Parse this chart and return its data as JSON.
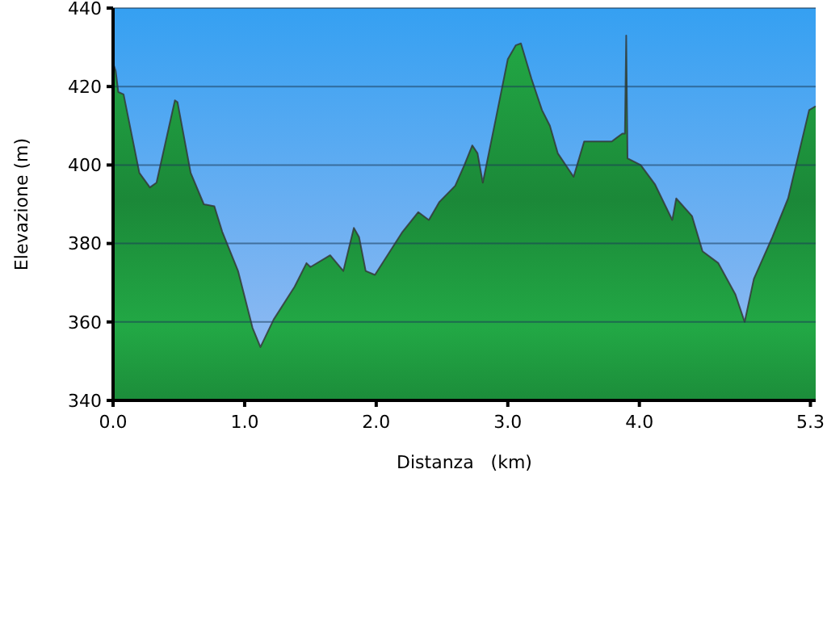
{
  "chart_data": {
    "type": "area",
    "xlabel": "Distanza   (km)",
    "ylabel": "Elevazione (m)",
    "grid": "y",
    "xlim": [
      0,
      5.34
    ],
    "ylim": [
      340,
      440
    ],
    "xticks": [
      {
        "value": 0,
        "label": "0.0"
      },
      {
        "value": 1,
        "label": "1.0"
      },
      {
        "value": 2,
        "label": "2.0"
      },
      {
        "value": 3,
        "label": "3.0"
      },
      {
        "value": 4,
        "label": "4.0"
      },
      5.3
    ],
    "yticks": [
      340,
      360,
      380,
      400,
      420,
      440
    ],
    "series": [
      {
        "color": "#22a845",
        "x": [
          0,
          0.02,
          0.04,
          0.08,
          0.2,
          0.28,
          0.33,
          0.47,
          0.49,
          0.59,
          0.69,
          0.77,
          0.83,
          0.95,
          1.06,
          1.12,
          1.22,
          1.38,
          1.47,
          1.5,
          1.65,
          1.75,
          1.83,
          1.87,
          1.92,
          1.99,
          2.2,
          2.32,
          2.4,
          2.48,
          2.6,
          2.67,
          2.73,
          2.77,
          2.81,
          2.91,
          3.0,
          3.06,
          3.1,
          3.18,
          3.26,
          3.32,
          3.38,
          3.5,
          3.58,
          3.79,
          3.87,
          3.89,
          3.9,
          3.91,
          4.01,
          4.12,
          4.25,
          4.28,
          4.4,
          4.48,
          4.6,
          4.73,
          4.8,
          4.87,
          5.01,
          5.13,
          5.29,
          5.34
        ],
        "values": [
          426,
          424,
          418.6,
          418,
          398,
          394.3,
          395.5,
          416.5,
          416,
          398,
          390,
          389.5,
          383,
          373,
          358.5,
          353.6,
          360.6,
          369,
          375,
          374,
          377,
          373,
          384,
          381.6,
          373,
          372,
          383,
          388,
          386,
          390.6,
          394.7,
          400,
          405,
          403,
          395.5,
          412,
          427,
          430.5,
          431,
          422,
          414,
          410,
          403,
          397,
          406,
          406,
          408,
          408,
          433,
          401.7,
          400,
          395,
          386,
          391.5,
          387,
          378,
          375,
          367,
          360,
          371,
          381.6,
          391.5,
          414,
          415
        ]
      }
    ]
  }
}
